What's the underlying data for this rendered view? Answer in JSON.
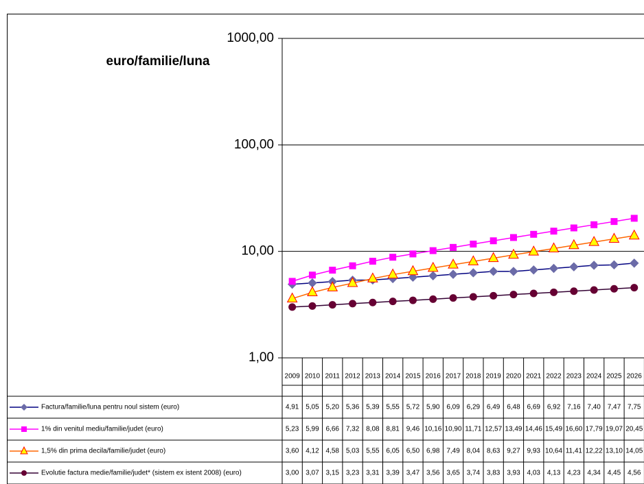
{
  "chart_data": {
    "type": "line",
    "y_label": "euro/familie/luna",
    "log_scale": true,
    "grid": true,
    "ylim": [
      1,
      1000
    ],
    "yticks": [
      {
        "value": 1,
        "label": "1,00"
      },
      {
        "value": 10,
        "label": "10,00"
      },
      {
        "value": 100,
        "label": "100,00"
      },
      {
        "value": 1000,
        "label": "1000,00"
      }
    ],
    "categories": [
      "2009",
      "2010",
      "2011",
      "2012",
      "2013",
      "2014",
      "2015",
      "2016",
      "2017",
      "2018",
      "2019",
      "2020",
      "2021",
      "2022",
      "2023",
      "2024",
      "2025",
      "2026"
    ],
    "series": [
      {
        "name": "Factura/familie/luna pentru noul sistem (euro)",
        "color": "#000080",
        "marker": "diamond",
        "marker_color": "#6b6ba8",
        "values": [
          4.91,
          5.05,
          5.2,
          5.36,
          5.39,
          5.55,
          5.72,
          5.9,
          6.09,
          6.29,
          6.49,
          6.48,
          6.69,
          6.92,
          7.16,
          7.4,
          7.47,
          7.75
        ],
        "value_labels": [
          "4,91",
          "5,05",
          "5,20",
          "5,36",
          "5,39",
          "5,55",
          "5,72",
          "5,90",
          "6,09",
          "6,29",
          "6,49",
          "6,48",
          "6,69",
          "6,92",
          "7,16",
          "7,40",
          "7,47",
          "7,75"
        ]
      },
      {
        "name": "1% din venitul mediu/familie/judet (euro)",
        "color": "#ff00ff",
        "marker": "square",
        "marker_color": "#ff00ff",
        "values": [
          5.23,
          5.99,
          6.66,
          7.32,
          8.08,
          8.81,
          9.46,
          10.16,
          10.9,
          11.71,
          12.57,
          13.49,
          14.46,
          15.49,
          16.6,
          17.79,
          19.07,
          20.45
        ],
        "value_labels": [
          "5,23",
          "5,99",
          "6,66",
          "7,32",
          "8,08",
          "8,81",
          "9,46",
          "10,16",
          "10,90",
          "11,71",
          "12,57",
          "13,49",
          "14,46",
          "15,49",
          "16,60",
          "17,79",
          "19,07",
          "20,45"
        ]
      },
      {
        "name": "1,5% din prima decila/familie/judet (euro)",
        "color": "#ff6600",
        "marker": "triangle",
        "marker_color": "#ffff00",
        "marker_edge": "#ff0000",
        "values": [
          3.6,
          4.12,
          4.58,
          5.03,
          5.55,
          6.05,
          6.5,
          6.98,
          7.49,
          8.04,
          8.63,
          9.27,
          9.93,
          10.64,
          11.41,
          12.22,
          13.1,
          14.05
        ],
        "value_labels": [
          "3,60",
          "4,12",
          "4,58",
          "5,03",
          "5,55",
          "6,05",
          "6,50",
          "6,98",
          "7,49",
          "8,04",
          "8,63",
          "9,27",
          "9,93",
          "10,64",
          "11,41",
          "12,22",
          "13,10",
          "14,05"
        ]
      },
      {
        "name": "Evolutie factura medie/familie/judet* (sistem ex istent 2008) (euro)",
        "color": "#330033",
        "marker": "circle",
        "marker_color": "#660033",
        "values": [
          3.0,
          3.07,
          3.15,
          3.23,
          3.31,
          3.39,
          3.47,
          3.56,
          3.65,
          3.74,
          3.83,
          3.93,
          4.03,
          4.13,
          4.23,
          4.34,
          4.45,
          4.56
        ],
        "value_labels": [
          "3,00",
          "3,07",
          "3,15",
          "3,23",
          "3,31",
          "3,39",
          "3,47",
          "3,56",
          "3,65",
          "3,74",
          "3,83",
          "3,93",
          "4,03",
          "4,13",
          "4,23",
          "4,34",
          "4,45",
          "4,56"
        ]
      }
    ]
  }
}
